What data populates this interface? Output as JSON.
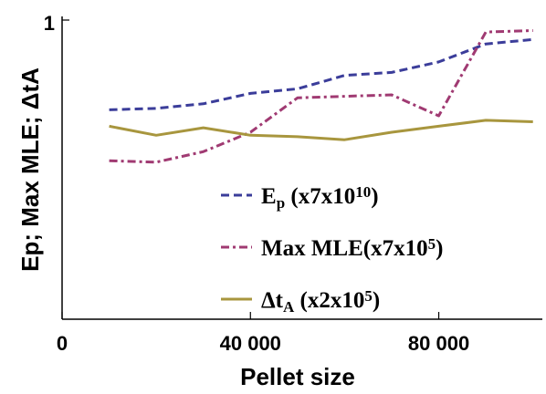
{
  "chart_data": {
    "type": "line",
    "xlabel": "Pellet size",
    "ylabel": "Ep; Max MLE; ΔtA",
    "xlim": [
      0,
      102000
    ],
    "ylim": [
      0,
      1
    ],
    "x_ticks": [
      0,
      40000,
      80000
    ],
    "x_tick_labels": [
      "0",
      "40 000",
      "80 000"
    ],
    "y_ticks": [
      1
    ],
    "y_tick_labels": [
      "1"
    ],
    "grid": false,
    "legend_position": "bottom-right",
    "x": [
      10000,
      20000,
      30000,
      40000,
      50000,
      60000,
      70000,
      80000,
      90000,
      100000
    ],
    "series": [
      {
        "name": "Ep (x7x10^10)",
        "legend_main": "E",
        "legend_sub": "p",
        "legend_mid": " (x7x10",
        "legend_sup": "10",
        "legend_end": ")",
        "color": "#3b3d9a",
        "dash": "9,5",
        "values": [
          0.7,
          0.705,
          0.72,
          0.755,
          0.77,
          0.815,
          0.825,
          0.86,
          0.92,
          0.935
        ]
      },
      {
        "name": "Max MLE(x7x10^5)",
        "legend_main": "Max MLE(x7x10",
        "legend_sup": "5",
        "legend_end": ")",
        "color": "#a03a72",
        "dash": "9,4,3,4",
        "values": [
          0.53,
          0.525,
          0.56,
          0.625,
          0.74,
          0.745,
          0.75,
          0.68,
          0.96,
          0.965
        ]
      },
      {
        "name": "ΔtA (x2x10^5)",
        "legend_main": "Δt",
        "legend_sub": "A",
        "legend_mid": " (x2x10",
        "legend_sup": "5",
        "legend_end": ")",
        "color": "#a8963e",
        "dash": "",
        "values": [
          0.645,
          0.615,
          0.64,
          0.615,
          0.61,
          0.6,
          0.625,
          0.645,
          0.665,
          0.66
        ]
      }
    ]
  }
}
